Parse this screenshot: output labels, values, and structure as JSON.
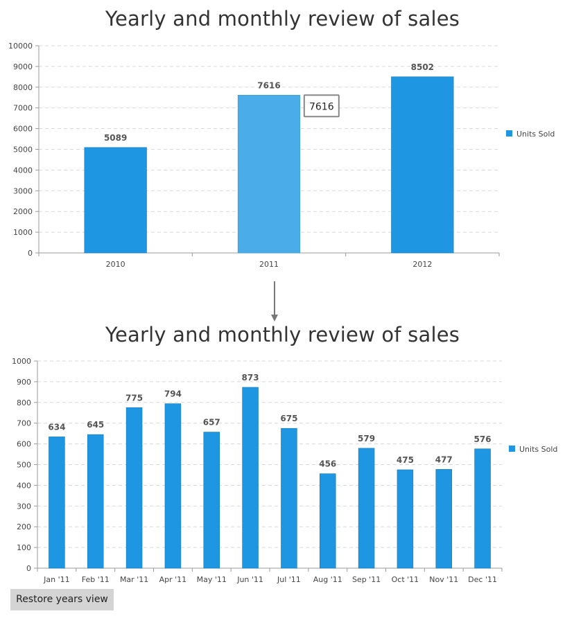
{
  "chart_data": [
    {
      "type": "bar",
      "title": "Yearly and monthly review of sales",
      "categories": [
        "2010",
        "2011",
        "2012"
      ],
      "series": [
        {
          "name": "Units Sold",
          "values": [
            5089,
            7616,
            8502
          ],
          "color": "#1e96e2"
        }
      ],
      "ylim": [
        0,
        10000
      ],
      "yticks": [
        0,
        1000,
        2000,
        3000,
        4000,
        5000,
        6000,
        7000,
        8000,
        9000,
        10000
      ],
      "grid": true,
      "legend": "right",
      "highlighted_category": "2011",
      "highlight_color": "#4aace9",
      "tooltip": {
        "category": "2011",
        "text": "7616"
      }
    },
    {
      "type": "bar",
      "title": "Yearly and monthly review of sales",
      "categories": [
        "Jan '11",
        "Feb '11",
        "Mar '11",
        "Apr '11",
        "May '11",
        "Jun '11",
        "Jul '11",
        "Aug '11",
        "Sep '11",
        "Oct '11",
        "Nov '11",
        "Dec '11"
      ],
      "series": [
        {
          "name": "Units Sold",
          "values": [
            634,
            645,
            775,
            794,
            657,
            873,
            675,
            456,
            579,
            475,
            477,
            576
          ],
          "color": "#1e96e2"
        }
      ],
      "ylim": [
        0,
        1000
      ],
      "yticks": [
        0,
        100,
        200,
        300,
        400,
        500,
        600,
        700,
        800,
        900,
        1000
      ],
      "grid": true,
      "legend": "right"
    }
  ],
  "controls": {
    "restore_label": "Restore years view"
  }
}
